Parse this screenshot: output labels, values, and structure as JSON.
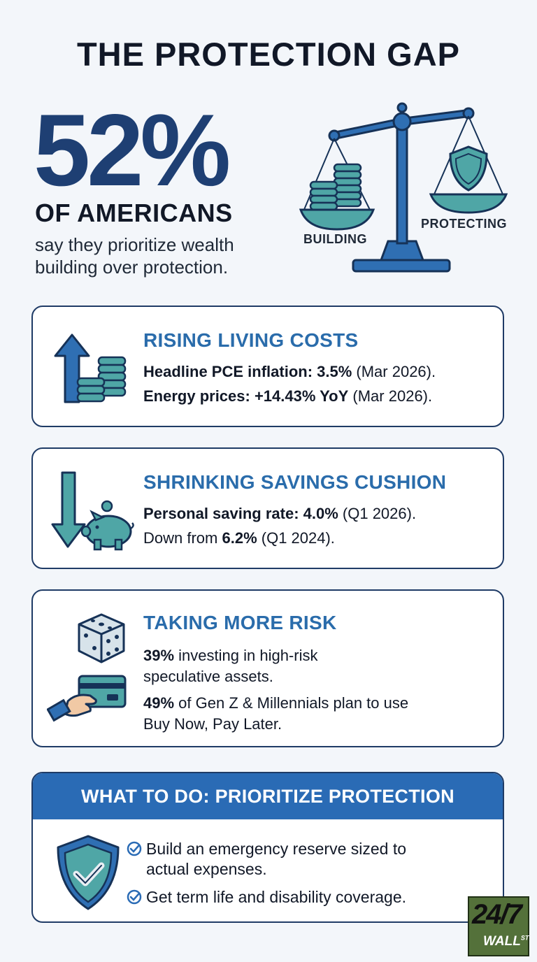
{
  "title": "THE PROTECTION GAP",
  "hero": {
    "stat": "52%",
    "subject": "OF AMERICANS",
    "description": "say they prioritize wealth building over protection."
  },
  "scale": {
    "left_label": "BUILDING",
    "right_label": "PROTECTING"
  },
  "cards": [
    {
      "title": "RISING LIVING COSTS",
      "lines": [
        {
          "bold": "Headline PCE inflation: 3.5%",
          "rest": " (Mar 2026)."
        },
        {
          "bold": "Energy prices: +14.43% YoY",
          "rest": " (Mar 2026)."
        }
      ]
    },
    {
      "title": "SHRINKING SAVINGS CUSHION",
      "lines": [
        {
          "bold": "Personal saving rate: 4.0%",
          "rest": " (Q1 2026)."
        },
        {
          "pre": "Down from ",
          "bold": "6.2%",
          "rest": " (Q1 2024)."
        }
      ]
    },
    {
      "title": "TAKING MORE RISK",
      "lines": [
        {
          "bold": "39%",
          "rest": " investing in high-risk"
        },
        {
          "rest": "speculative assets."
        },
        {
          "bold": "49%",
          "rest": " of Gen Z & Millennials plan to use"
        },
        {
          "rest": "Buy Now, Pay Later."
        }
      ]
    }
  ],
  "action": {
    "title": "WHAT TO DO: PRIORITIZE PROTECTION",
    "items": [
      {
        "line1": "Build an emergency reserve sized to",
        "line2": "actual expenses."
      },
      {
        "line1": "Get term life and disability coverage.",
        "line2": ""
      }
    ]
  },
  "logo": {
    "main": "24/7",
    "sub": "WALL",
    "sup": "ST"
  },
  "colors": {
    "navy": "#1e3f73",
    "blue": "#2a6cab",
    "teal": "#4fa6a6",
    "header_blue": "#2a6bb5"
  }
}
